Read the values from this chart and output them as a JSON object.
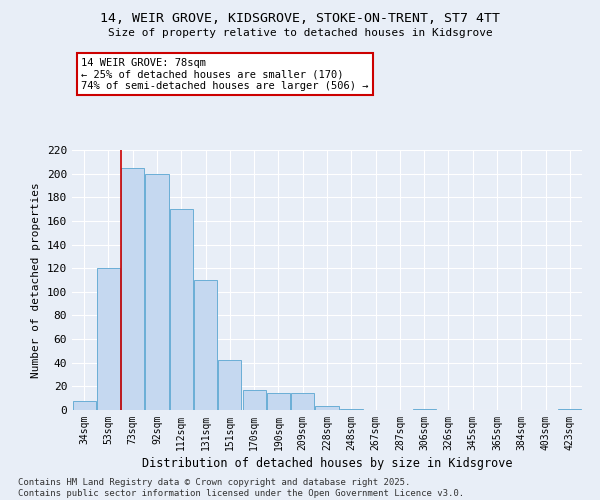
{
  "title_line1": "14, WEIR GROVE, KIDSGROVE, STOKE-ON-TRENT, ST7 4TT",
  "title_line2": "Size of property relative to detached houses in Kidsgrove",
  "xlabel": "Distribution of detached houses by size in Kidsgrove",
  "ylabel": "Number of detached properties",
  "categories": [
    "34sqm",
    "53sqm",
    "73sqm",
    "92sqm",
    "112sqm",
    "131sqm",
    "151sqm",
    "170sqm",
    "190sqm",
    "209sqm",
    "228sqm",
    "248sqm",
    "267sqm",
    "287sqm",
    "306sqm",
    "326sqm",
    "345sqm",
    "365sqm",
    "384sqm",
    "403sqm",
    "423sqm"
  ],
  "values": [
    8,
    120,
    205,
    200,
    170,
    110,
    42,
    17,
    14,
    14,
    3,
    1,
    0,
    0,
    1,
    0,
    0,
    0,
    0,
    0,
    1
  ],
  "bar_color": "#c5d8f0",
  "bar_edge_color": "#6aaed6",
  "bg_color": "#e8eef7",
  "grid_color": "#ffffff",
  "annotation_line1": "14 WEIR GROVE: 78sqm",
  "annotation_line2": "← 25% of detached houses are smaller (170)",
  "annotation_line3": "74% of semi-detached houses are larger (506) →",
  "annotation_box_color": "#cc0000",
  "red_line_x": 1.5,
  "ylim": [
    0,
    220
  ],
  "yticks": [
    0,
    20,
    40,
    60,
    80,
    100,
    120,
    140,
    160,
    180,
    200,
    220
  ],
  "footer_line1": "Contains HM Land Registry data © Crown copyright and database right 2025.",
  "footer_line2": "Contains public sector information licensed under the Open Government Licence v3.0."
}
